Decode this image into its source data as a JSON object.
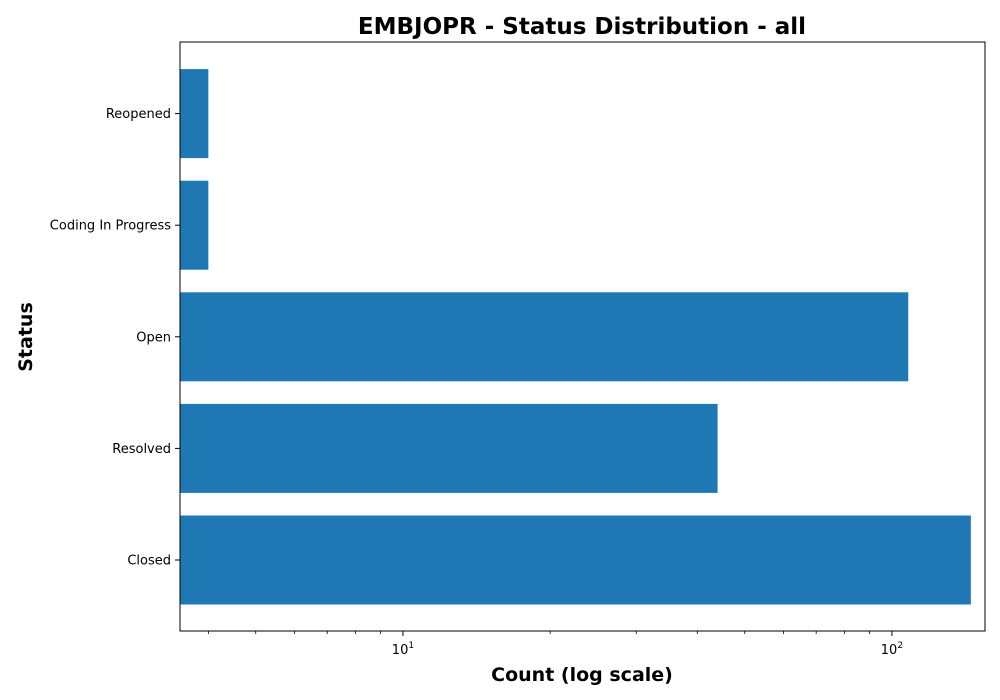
{
  "chart_data": {
    "type": "bar",
    "orientation": "horizontal",
    "title": "EMBJOPR - Status Distribution - all",
    "xlabel": "Count (log scale)",
    "ylabel": "Status",
    "x_scale": "log",
    "xlim": [
      3.5,
      155
    ],
    "categories": [
      "Closed",
      "Resolved",
      "Open",
      "Coding In Progress",
      "Reopened"
    ],
    "values": [
      145,
      44,
      108,
      4,
      4
    ],
    "x_ticks": [
      {
        "base": "10",
        "exp": "1",
        "value": 10
      },
      {
        "base": "10",
        "exp": "2",
        "value": 100
      }
    ],
    "grid": false,
    "bar_color": "#1f77b4"
  }
}
